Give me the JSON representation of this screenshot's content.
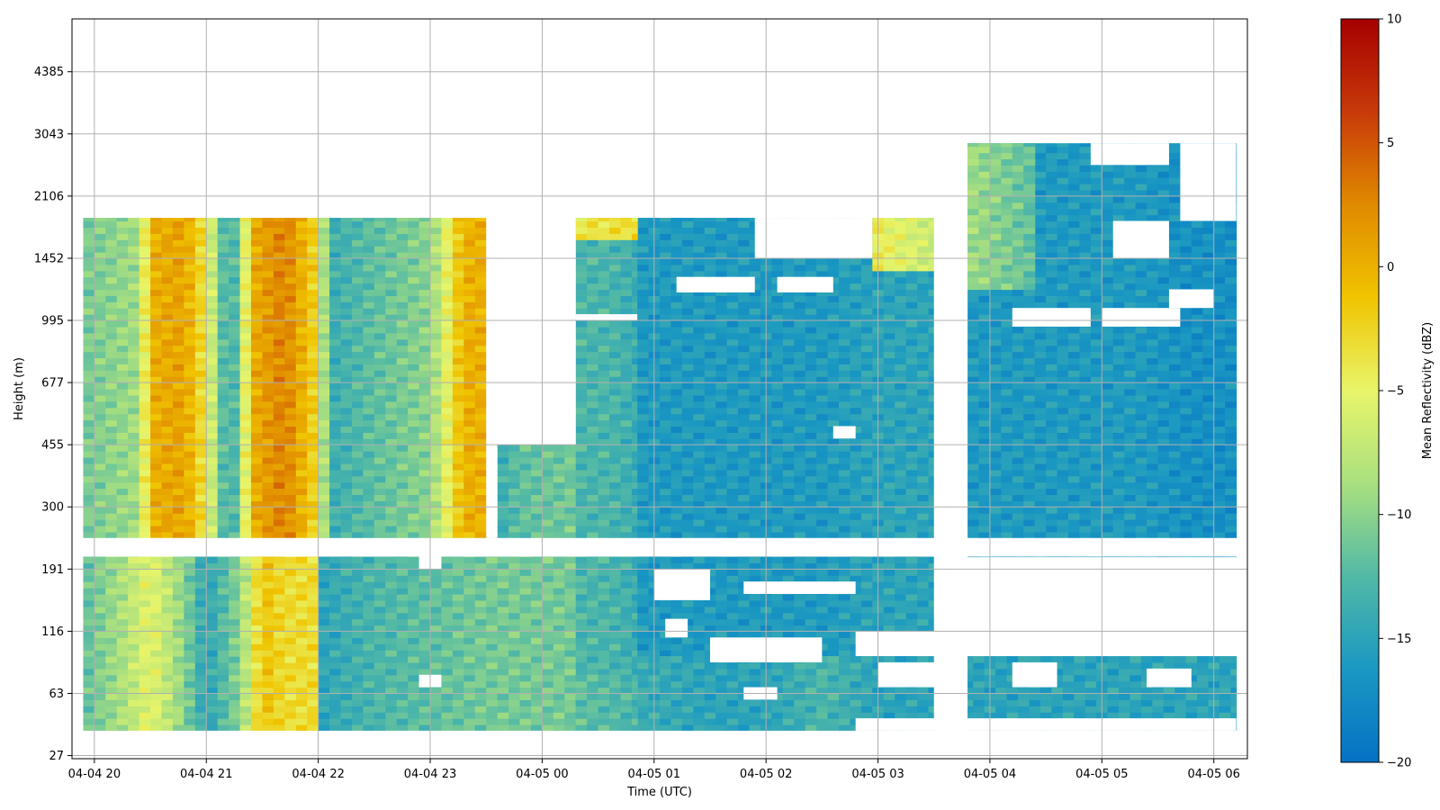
{
  "chart_data": {
    "type": "heatmap",
    "title": "",
    "xlabel": "Time (UTC)",
    "ylabel": "Height (m)",
    "x_ticks": [
      "04-04 20",
      "04-04 21",
      "04-04 22",
      "04-04 23",
      "04-05 00",
      "04-05 01",
      "04-05 02",
      "04-05 03",
      "04-05 04",
      "04-05 05",
      "04-05 06"
    ],
    "x_tick_hours": [
      0,
      1,
      2,
      3,
      4,
      5,
      6,
      7,
      8,
      9,
      10
    ],
    "xlim_hours": [
      -0.2,
      10.3
    ],
    "y_ticks": [
      "27",
      "63",
      "116",
      "191",
      "300",
      "455",
      "677",
      "995",
      "1452",
      "2106",
      "3043",
      "4385"
    ],
    "y_tick_levels": [
      0,
      1,
      2,
      3,
      4,
      5,
      6,
      7,
      8,
      9,
      10,
      11
    ],
    "ylim_levels": [
      -0.05,
      11.85
    ],
    "grid": true,
    "colorbar": {
      "label": "Mean Reflectivity (dBZ)",
      "min": -20,
      "max": 10,
      "ticks": [
        "10",
        "5",
        "0",
        "−5",
        "−10",
        "−15",
        "−20"
      ],
      "tick_values": [
        10,
        5,
        0,
        -5,
        -10,
        -15,
        -20
      ],
      "colormap": [
        "#0571c4",
        "#1a98c2",
        "#52b9a6",
        "#a9e07f",
        "#e8f56a",
        "#f0c400",
        "#e08a00",
        "#c83a0a",
        "#a50000"
      ]
    },
    "regions": [
      {
        "name": "A",
        "t0": -0.1,
        "t1": 3.5,
        "h0": 3.2,
        "h1": 8.65,
        "segments": [
          [
            -0.1,
            -11
          ],
          [
            0.4,
            -9
          ],
          [
            0.5,
            0
          ],
          [
            0.8,
            1
          ],
          [
            1.0,
            -4
          ],
          [
            1.2,
            -15
          ],
          [
            1.3,
            -10
          ],
          [
            1.4,
            0
          ],
          [
            1.7,
            3
          ],
          [
            2.0,
            -3
          ],
          [
            2.1,
            -14
          ],
          [
            2.5,
            -12
          ],
          [
            3.0,
            -10
          ],
          [
            3.3,
            0
          ],
          [
            3.5,
            0
          ]
        ]
      },
      {
        "name": "B",
        "t0": -0.1,
        "t1": 2.0,
        "h0": 0.4,
        "h1": 3.5,
        "segments": [
          [
            -0.1,
            -12
          ],
          [
            0.3,
            -8
          ],
          [
            0.5,
            -5
          ],
          [
            0.8,
            -10
          ],
          [
            1.0,
            -15
          ],
          [
            1.3,
            -10
          ],
          [
            1.5,
            -1
          ],
          [
            1.7,
            -3
          ],
          [
            2.0,
            -3
          ]
        ]
      },
      {
        "name": "C",
        "t0": 2.0,
        "t1": 4.3,
        "h0": 0.4,
        "h1": 3.5,
        "segments": [
          [
            2.0,
            -15
          ],
          [
            2.5,
            -13
          ],
          [
            3.0,
            -12
          ],
          [
            3.5,
            -11
          ],
          [
            4.0,
            -11
          ],
          [
            4.3,
            -11
          ]
        ]
      },
      {
        "name": "D",
        "t0": 3.6,
        "t1": 4.3,
        "h0": 3.5,
        "h1": 5.0,
        "segments": [
          [
            3.6,
            -14
          ],
          [
            3.8,
            -12
          ],
          [
            4.3,
            -11
          ]
        ]
      },
      {
        "name": "E",
        "t0": 4.3,
        "t1": 4.85,
        "h0": 0.4,
        "h1": 8.65,
        "segments": [
          [
            4.3,
            -13
          ],
          [
            4.6,
            -13
          ],
          [
            4.85,
            -14
          ]
        ]
      },
      {
        "name": "F",
        "t0": 4.85,
        "t1": 7.5,
        "h0": 0.4,
        "h1": 8.65,
        "segments": [
          [
            4.85,
            -16
          ],
          [
            5.5,
            -16
          ],
          [
            6.0,
            -16
          ],
          [
            6.5,
            -16
          ],
          [
            7.0,
            -15
          ],
          [
            7.5,
            -15
          ]
        ]
      },
      {
        "name": "G",
        "t0": 7.8,
        "t1": 10.2,
        "h0": 3.2,
        "h1": 9.85,
        "segments": [
          [
            7.8,
            -16
          ],
          [
            8.3,
            -16
          ],
          [
            8.8,
            -16
          ],
          [
            9.3,
            -16
          ],
          [
            9.8,
            -17
          ],
          [
            10.2,
            -17
          ]
        ]
      },
      {
        "name": "H",
        "t0": 7.8,
        "t1": 8.4,
        "h0": 7.5,
        "h1": 9.85,
        "segments": [
          [
            7.8,
            -9
          ],
          [
            8.0,
            -10
          ],
          [
            8.4,
            -12
          ]
        ]
      },
      {
        "name": "I",
        "t0": 4.3,
        "t1": 4.85,
        "h0": 8.3,
        "h1": 8.65,
        "segments": [
          [
            4.3,
            -4
          ],
          [
            4.85,
            -3
          ]
        ]
      },
      {
        "name": "J",
        "t0": 6.95,
        "t1": 7.5,
        "h0": 7.8,
        "h1": 8.65,
        "segments": [
          [
            6.95,
            -4
          ],
          [
            7.5,
            -7
          ]
        ]
      },
      {
        "name": "K",
        "t0": 4.85,
        "t1": 10.2,
        "h0": 0.4,
        "h1": 1.6,
        "segments": [
          [
            4.85,
            -14
          ],
          [
            5.5,
            -15
          ],
          [
            6.0,
            -15
          ],
          [
            6.5,
            -13
          ],
          [
            7.0,
            -15
          ],
          [
            8.0,
            -15
          ],
          [
            9.0,
            -15
          ],
          [
            10.2,
            -15
          ]
        ]
      },
      {
        "name": "L",
        "t0": 4.3,
        "t1": 4.85,
        "h0": 0.4,
        "h1": 1.3,
        "segments": [
          [
            4.3,
            -12
          ],
          [
            4.85,
            -13
          ]
        ]
      }
    ],
    "gaps": [
      {
        "t0": 3.5,
        "t1": 4.3,
        "h0": 5.0,
        "h1": 10.2
      },
      {
        "t0": 3.5,
        "t1": 3.6,
        "h0": 3.5,
        "h1": 5.0
      },
      {
        "t0": 7.5,
        "t1": 7.8,
        "h0": 0.4,
        "h1": 9.9
      },
      {
        "t0": -0.2,
        "t1": 10.3,
        "h0": 3.2,
        "h1": 3.5
      },
      {
        "t0": -0.2,
        "t1": 10.3,
        "h0": -0.05,
        "h1": 0.4
      },
      {
        "t0": 4.3,
        "t1": 4.85,
        "h0": 7.0,
        "h1": 7.1
      },
      {
        "t0": 5.2,
        "t1": 5.9,
        "h0": 7.45,
        "h1": 7.7
      },
      {
        "t0": 6.1,
        "t1": 6.6,
        "h0": 7.45,
        "h1": 7.7
      },
      {
        "t0": 5.9,
        "t1": 6.95,
        "h0": 8.0,
        "h1": 8.65
      },
      {
        "t0": 6.95,
        "t1": 7.5,
        "h0": 8.65,
        "h1": 8.9
      },
      {
        "t0": 8.2,
        "t1": 8.9,
        "h0": 6.9,
        "h1": 7.2
      },
      {
        "t0": 9.0,
        "t1": 9.7,
        "h0": 6.9,
        "h1": 7.2
      },
      {
        "t0": 9.6,
        "t1": 10.0,
        "h0": 7.2,
        "h1": 7.5
      },
      {
        "t0": 9.1,
        "t1": 9.6,
        "h0": 8.0,
        "h1": 8.6
      },
      {
        "t0": 9.7,
        "t1": 10.2,
        "h0": 8.6,
        "h1": 9.85
      },
      {
        "t0": 8.9,
        "t1": 9.6,
        "h0": 9.5,
        "h1": 9.85
      },
      {
        "t0": 6.6,
        "t1": 6.8,
        "h0": 5.1,
        "h1": 5.3
      },
      {
        "t0": 5.0,
        "t1": 5.5,
        "h0": 2.5,
        "h1": 3.0
      },
      {
        "t0": 5.1,
        "t1": 5.3,
        "h0": 1.9,
        "h1": 2.2
      },
      {
        "t0": 5.8,
        "t1": 6.8,
        "h0": 2.6,
        "h1": 2.8
      },
      {
        "t0": 8.1,
        "t1": 8.4,
        "h0": 2.7,
        "h1": 3.0
      },
      {
        "t0": 8.9,
        "t1": 9.6,
        "h0": 2.6,
        "h1": 2.8
      },
      {
        "t0": 5.5,
        "t1": 6.5,
        "h0": 1.5,
        "h1": 1.9
      },
      {
        "t0": 6.8,
        "t1": 10.2,
        "h0": 1.6,
        "h1": 2.0
      },
      {
        "t0": 7.0,
        "t1": 7.6,
        "h0": 1.1,
        "h1": 1.5
      },
      {
        "t0": 8.2,
        "t1": 8.6,
        "h0": 1.1,
        "h1": 1.5
      },
      {
        "t0": 9.4,
        "t1": 9.8,
        "h0": 1.1,
        "h1": 1.4
      },
      {
        "t0": 6.8,
        "t1": 10.2,
        "h0": 0.4,
        "h1": 0.6
      },
      {
        "t0": 5.8,
        "t1": 6.1,
        "h0": 0.9,
        "h1": 1.1
      },
      {
        "t0": 2.9,
        "t1": 3.1,
        "h0": 3.0,
        "h1": 3.2
      },
      {
        "t0": 2.9,
        "t1": 3.1,
        "h0": 1.1,
        "h1": 1.3
      }
    ]
  }
}
